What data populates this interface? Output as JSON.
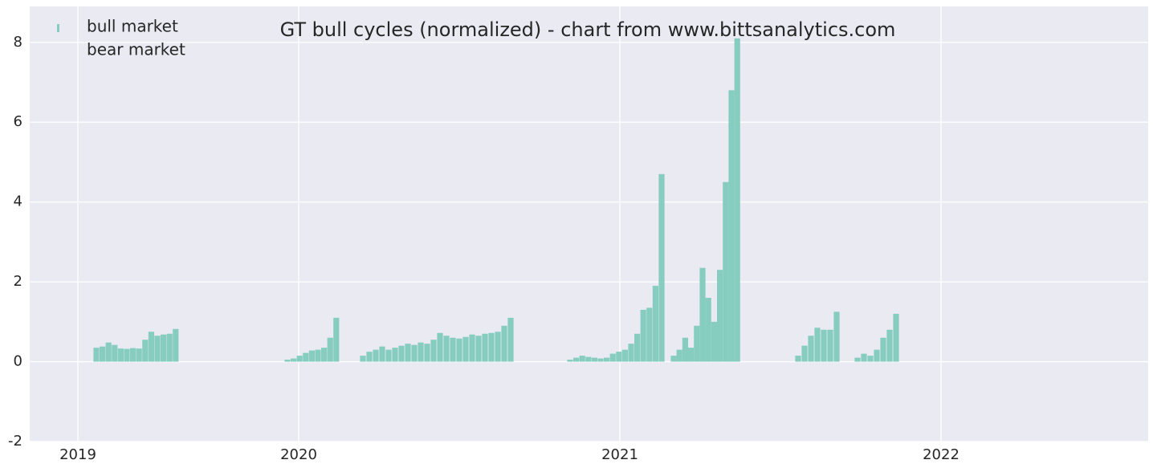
{
  "chart_data": {
    "type": "bar",
    "title": "GT bull cycles (normalized)  - chart from www.bittsanalytics.com",
    "x": [
      2019.37,
      2019.389,
      2019.408,
      2019.427,
      2019.446,
      2019.465,
      2019.484,
      2019.503,
      2019.522,
      2019.541,
      2019.56,
      2019.579,
      2019.598,
      2019.617,
      2019.965,
      2019.984,
      2020.003,
      2020.022,
      2020.041,
      2020.06,
      2020.079,
      2020.098,
      2020.117,
      2020.2,
      2020.22,
      2020.24,
      2020.26,
      2020.28,
      2020.3,
      2020.32,
      2020.34,
      2020.36,
      2020.38,
      2020.4,
      2020.42,
      2020.44,
      2020.46,
      2020.48,
      2020.5,
      2020.52,
      2020.54,
      2020.56,
      2020.58,
      2020.6,
      2020.62,
      2020.64,
      2020.66,
      2020.845,
      2020.864,
      2020.883,
      2020.902,
      2020.921,
      2020.94,
      2020.959,
      2020.978,
      2020.997,
      2021.016,
      2021.035,
      2021.054,
      2021.073,
      2021.092,
      2021.111,
      2021.13,
      2021.1675,
      2021.1855,
      2021.2035,
      2021.2215,
      2021.2395,
      2021.2575,
      2021.2755,
      2021.2935,
      2021.3115,
      2021.3295,
      2021.3475,
      2021.3655,
      2021.555,
      2021.575,
      2021.595,
      2021.615,
      2021.635,
      2021.655,
      2021.675,
      2021.74,
      2021.76,
      2021.78,
      2021.8,
      2021.82,
      2021.84,
      2021.86
    ],
    "series": [
      {
        "name": "bull market",
        "color": "#86cdbf",
        "values": [
          0.35,
          0.38,
          0.48,
          0.42,
          0.33,
          0.32,
          0.34,
          0.33,
          0.55,
          0.75,
          0.65,
          0.68,
          0.7,
          0.82,
          0.05,
          0.08,
          0.15,
          0.22,
          0.28,
          0.3,
          0.35,
          0.6,
          1.1,
          0.15,
          0.25,
          0.3,
          0.38,
          0.3,
          0.35,
          0.4,
          0.45,
          0.42,
          0.48,
          0.45,
          0.55,
          0.72,
          0.65,
          0.6,
          0.58,
          0.62,
          0.68,
          0.65,
          0.7,
          0.72,
          0.75,
          0.9,
          1.1,
          0.05,
          0.1,
          0.15,
          0.12,
          0.1,
          0.08,
          0.1,
          0.2,
          0.25,
          0.3,
          0.45,
          0.7,
          1.3,
          1.35,
          1.9,
          4.7,
          0.15,
          0.3,
          0.6,
          0.35,
          0.9,
          2.35,
          1.6,
          1.0,
          2.3,
          4.5,
          6.8,
          8.1,
          0.15,
          0.4,
          0.65,
          0.85,
          0.8,
          0.8,
          1.25,
          0.1,
          0.2,
          0.15,
          0.3,
          0.6,
          0.8,
          1.2
        ]
      },
      {
        "name": "bear market",
        "color": "#eaeaf2",
        "values": [
          null,
          null,
          null,
          null,
          null,
          null,
          null,
          null,
          null,
          null,
          null,
          null,
          null,
          null,
          null,
          null,
          null,
          null,
          null,
          null,
          null,
          null,
          null,
          null,
          null,
          null,
          null,
          null,
          null,
          null,
          null,
          null,
          null,
          null,
          null,
          null,
          null,
          null,
          null,
          null,
          null,
          null,
          null,
          null,
          null,
          null,
          null,
          null,
          null,
          null,
          null,
          null,
          null,
          null,
          null,
          null,
          null,
          null,
          null,
          null,
          null,
          null,
          null,
          null,
          null,
          null,
          null,
          null,
          null,
          null,
          null,
          null,
          null,
          null,
          null,
          null,
          null,
          null,
          null,
          null,
          null,
          null,
          null,
          null,
          null,
          null,
          null,
          null,
          null
        ]
      }
    ],
    "xlim": [
      2019.1625,
      2022.645
    ],
    "xticks": [
      {
        "value": 2019.3125,
        "label": "2019"
      },
      {
        "value": 2020.0,
        "label": "2020"
      },
      {
        "value": 2021.0,
        "label": "2021"
      },
      {
        "value": 2022.0,
        "label": "2022"
      }
    ],
    "ylim": [
      -2,
      8.9
    ],
    "yticks": [
      -2,
      0,
      2,
      4,
      6,
      8
    ],
    "grid": true,
    "legend": "upper left",
    "background": "#eaeaf2"
  }
}
